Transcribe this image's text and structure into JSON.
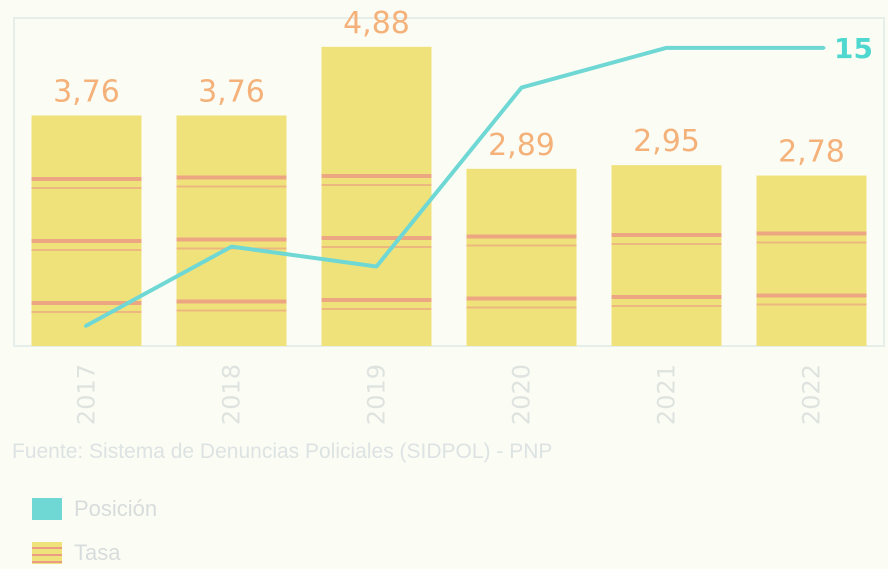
{
  "chart_data": {
    "type": "bar",
    "categories": [
      "2017",
      "2018",
      "2019",
      "2020",
      "2021",
      "2022"
    ],
    "series": [
      {
        "name": "Tasa",
        "type": "bar",
        "values": [
          3.76,
          3.76,
          4.88,
          2.89,
          2.95,
          2.78
        ],
        "labels": [
          "3,76",
          "3,76",
          "4,88",
          "2,89",
          "2,95",
          "2,78"
        ]
      },
      {
        "name": "Posición",
        "type": "line",
        "values": [
          1,
          5,
          4,
          13,
          15,
          15
        ],
        "last_label": "15"
      }
    ],
    "bar_ylim": [
      0,
      5.35
    ],
    "line_ylim": [
      0,
      16.5
    ],
    "source": "Fuente: Sistema de Denuncias Policiales (SIDPOL) - PNP",
    "legend": [
      "Posición",
      "Tasa"
    ],
    "legend_position": "bottom-left",
    "colors": {
      "bar": "#f0e27a",
      "bar_stripe": "#eb9c84",
      "line": "#6fd8d4",
      "bar_label": "#f4b27a"
    }
  }
}
